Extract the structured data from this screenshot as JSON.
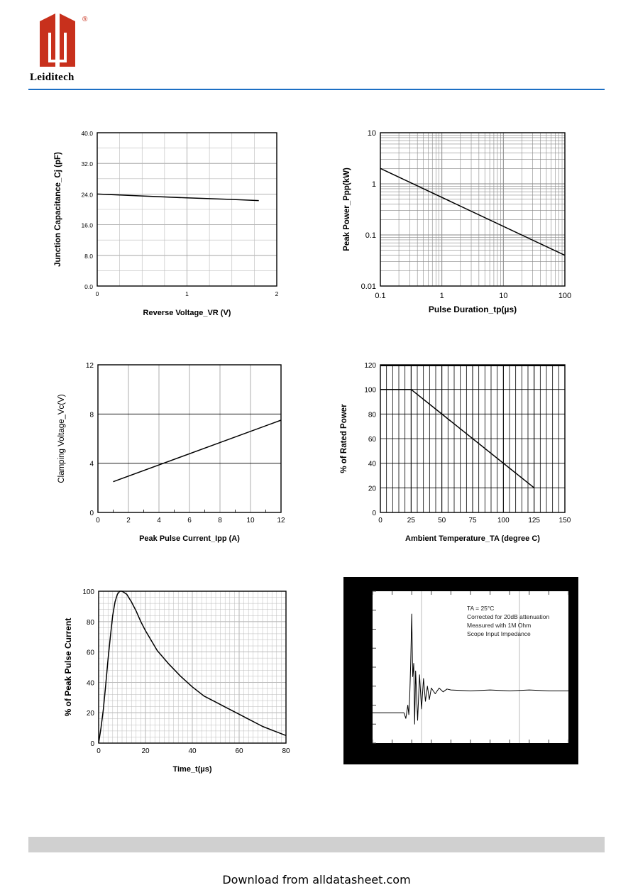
{
  "brand": {
    "name": "Leiditech",
    "registered_mark": "®",
    "colors": {
      "logo": "#c8301c",
      "rule": "#1c6fc4"
    }
  },
  "footer": {
    "download_text": "Download from alldatasheet.com"
  },
  "chart_data": [
    {
      "type": "line",
      "xlabel": "Reverse Voltage_VR (V)",
      "ylabel": "Junction Capacitance_Cj (pF)",
      "xlim": [
        0,
        2
      ],
      "ylim": [
        0,
        40
      ],
      "x_ticks": [
        "0",
        "1",
        "2"
      ],
      "y_ticks": [
        "0.0",
        "8.0",
        "16.0",
        "24.0",
        "32.0",
        "40.0"
      ],
      "series": [
        {
          "x": [
            0,
            0.5,
            1.0,
            1.5,
            1.8
          ],
          "y": [
            24.0,
            23.5,
            23.0,
            22.6,
            22.3
          ]
        }
      ]
    },
    {
      "type": "line",
      "xlabel": "Pulse Duration_tp(µs)",
      "ylabel": "Peak  Power_Ppp(kW)",
      "xscale": "log",
      "yscale": "log",
      "xlim": [
        0.1,
        100
      ],
      "ylim": [
        0.01,
        10
      ],
      "x_ticks": [
        "0.1",
        "1",
        "10",
        "100"
      ],
      "y_ticks": [
        "0.01",
        "0.1",
        "1",
        "10"
      ],
      "series": [
        {
          "x": [
            0.1,
            100
          ],
          "y": [
            2.0,
            0.04
          ]
        }
      ]
    },
    {
      "type": "line",
      "xlabel": "Peak Pulse Current_Ipp (A)",
      "ylabel": "Clamping Voltage_Vc(V)",
      "xlim": [
        0,
        12
      ],
      "ylim": [
        0,
        12
      ],
      "x_ticks": [
        "0",
        "2",
        "4",
        "6",
        "8",
        "10",
        "12"
      ],
      "y_ticks": [
        "0",
        "4",
        "8",
        "12"
      ],
      "series": [
        {
          "x": [
            1,
            12
          ],
          "y": [
            2.5,
            7.5
          ]
        }
      ]
    },
    {
      "type": "line",
      "xlabel": "Ambient  Temperature_TA (degree C)",
      "ylabel": "% of Rated Power",
      "xlim": [
        0,
        150
      ],
      "ylim": [
        0,
        120
      ],
      "x_ticks": [
        "0",
        "25",
        "50",
        "75",
        "100",
        "125",
        "150"
      ],
      "y_ticks": [
        "0",
        "20",
        "40",
        "60",
        "80",
        "100",
        "120"
      ],
      "series": [
        {
          "x": [
            0,
            25,
            125
          ],
          "y": [
            100,
            100,
            20
          ]
        }
      ]
    },
    {
      "type": "line",
      "xlabel": "Time_t(µs)",
      "ylabel": "% of Peak Pulse Current",
      "xlim": [
        0,
        80
      ],
      "ylim": [
        0,
        100
      ],
      "x_ticks": [
        "0",
        "20",
        "40",
        "60",
        "80"
      ],
      "y_ticks": [
        "0",
        "20",
        "40",
        "60",
        "80",
        "100"
      ],
      "series": [
        {
          "x": [
            0,
            1,
            2,
            3,
            4,
            5,
            6,
            7,
            8,
            9,
            10,
            12,
            14,
            16,
            18,
            20,
            25,
            30,
            35,
            40,
            45,
            50,
            55,
            60,
            65,
            70,
            75,
            80
          ],
          "y": [
            0,
            10,
            22,
            38,
            55,
            70,
            84,
            93,
            98,
            100,
            100,
            98,
            93,
            87,
            80,
            74,
            61,
            52,
            44,
            37,
            31,
            27,
            23,
            19,
            15,
            11,
            8,
            5
          ]
        }
      ]
    },
    {
      "type": "line",
      "annotations": [
        "TA = 25°C",
        "Corrected for 20dB attenuation",
        "Measured with 1M Ohm",
        "Scope Input Impedance"
      ],
      "xlim": [
        0,
        10
      ],
      "ylim": [
        0,
        8
      ],
      "series": [
        {
          "x": [
            0,
            1.6,
            1.7,
            1.8,
            1.85,
            1.9,
            1.95,
            2.0,
            2.05,
            2.1,
            2.15,
            2.2,
            2.3,
            2.4,
            2.5,
            2.6,
            2.7,
            2.8,
            2.9,
            3.0,
            3.2,
            3.4,
            3.6,
            3.8,
            4.0,
            5.0,
            6.0,
            7.0,
            8.0,
            9.0,
            10.0
          ],
          "y": [
            1.6,
            1.6,
            1.3,
            2.0,
            1.5,
            2.5,
            4.3,
            6.8,
            3.5,
            4.2,
            1.0,
            3.8,
            1.2,
            3.6,
            1.8,
            3.4,
            2.2,
            3.0,
            2.3,
            2.9,
            2.6,
            2.9,
            2.7,
            2.85,
            2.8,
            2.75,
            2.8,
            2.75,
            2.8,
            2.75,
            2.75
          ]
        }
      ]
    }
  ]
}
